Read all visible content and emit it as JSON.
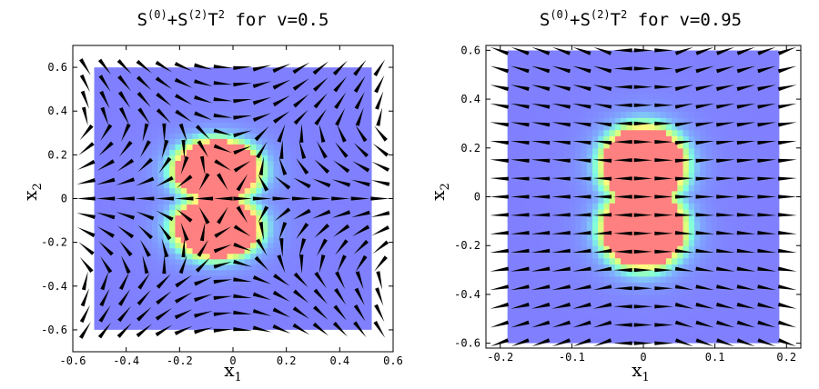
{
  "chart_data": [
    {
      "type": "heatmap",
      "variant": "vector-field-over-density",
      "title": {
        "base1": "S",
        "sup1": "(0)",
        "mid": "+S",
        "sup2": "(2)",
        "base2": "T",
        "sup3": "2",
        "tail": " for v=0.5"
      },
      "velocity": 0.5,
      "xlabel": {
        "base": "x",
        "sub": "1"
      },
      "ylabel": {
        "base": "x",
        "sub": "2"
      },
      "xlim": [
        -0.6,
        0.6
      ],
      "ylim": [
        -0.7,
        0.7
      ],
      "x_ticks": [
        -0.6,
        -0.4,
        -0.2,
        0,
        0.2,
        0.4,
        0.6
      ],
      "y_ticks": [
        -0.6,
        -0.4,
        -0.2,
        0,
        0.2,
        0.4,
        0.6
      ],
      "x_tick_labels": [
        "-0.6",
        "-0.4",
        "-0.2",
        "0",
        "0.2",
        "0.4",
        "0.6"
      ],
      "y_tick_labels": [
        "-0.6",
        "-0.4",
        "-0.2",
        "0",
        "0.2",
        "0.4",
        "0.6"
      ],
      "field_extent": {
        "x": [
          -0.52,
          0.52
        ],
        "y": [
          -0.6,
          0.6
        ]
      },
      "density_lobes": [
        {
          "cx": -0.06,
          "cy": 0.13,
          "rx": 0.155,
          "ry": 0.135
        },
        {
          "cx": -0.06,
          "cy": -0.13,
          "rx": 0.155,
          "ry": 0.135
        }
      ],
      "color_scale": [
        "#8080ff",
        "#80b0ff",
        "#80ffe0",
        "#c0ff80",
        "#ffff80",
        "#ff8080"
      ],
      "arrow_grid": {
        "nx": 16,
        "ny": 17
      }
    },
    {
      "type": "heatmap",
      "variant": "vector-field-over-density",
      "title": {
        "base1": "S",
        "sup1": "(0)",
        "mid": "+S",
        "sup2": "(2)",
        "base2": "T",
        "sup3": "2",
        "tail": " for v=0.95"
      },
      "velocity": 0.95,
      "xlabel": {
        "base": "x",
        "sub": "1"
      },
      "ylabel": {
        "base": "x",
        "sub": "2"
      },
      "xlim": [
        -0.22,
        0.22
      ],
      "ylim": [
        -0.62,
        0.62
      ],
      "x_ticks": [
        -0.2,
        -0.1,
        0,
        0.1,
        0.2
      ],
      "y_ticks": [
        -0.6,
        -0.4,
        -0.2,
        0,
        0.2,
        0.4,
        0.6
      ],
      "x_tick_labels": [
        "-0.2",
        "-0.1",
        "0",
        "0.1",
        "0.2"
      ],
      "y_tick_labels": [
        "-0.6",
        "-0.4",
        "-0.2",
        "0",
        "0.2",
        "0.4",
        "0.6"
      ],
      "field_extent": {
        "x": [
          -0.19,
          0.19
        ],
        "y": [
          -0.6,
          0.6
        ]
      },
      "density_lobes": [
        {
          "cx": 0,
          "cy": 0.13,
          "rx": 0.056,
          "ry": 0.155
        },
        {
          "cx": 0,
          "cy": -0.13,
          "rx": 0.056,
          "ry": 0.155
        }
      ],
      "color_scale": [
        "#8080ff",
        "#80b0ff",
        "#80ffe0",
        "#c0ff80",
        "#ffff80",
        "#ff8080"
      ],
      "arrow_grid": {
        "nx": 15,
        "ny": 17
      }
    }
  ]
}
